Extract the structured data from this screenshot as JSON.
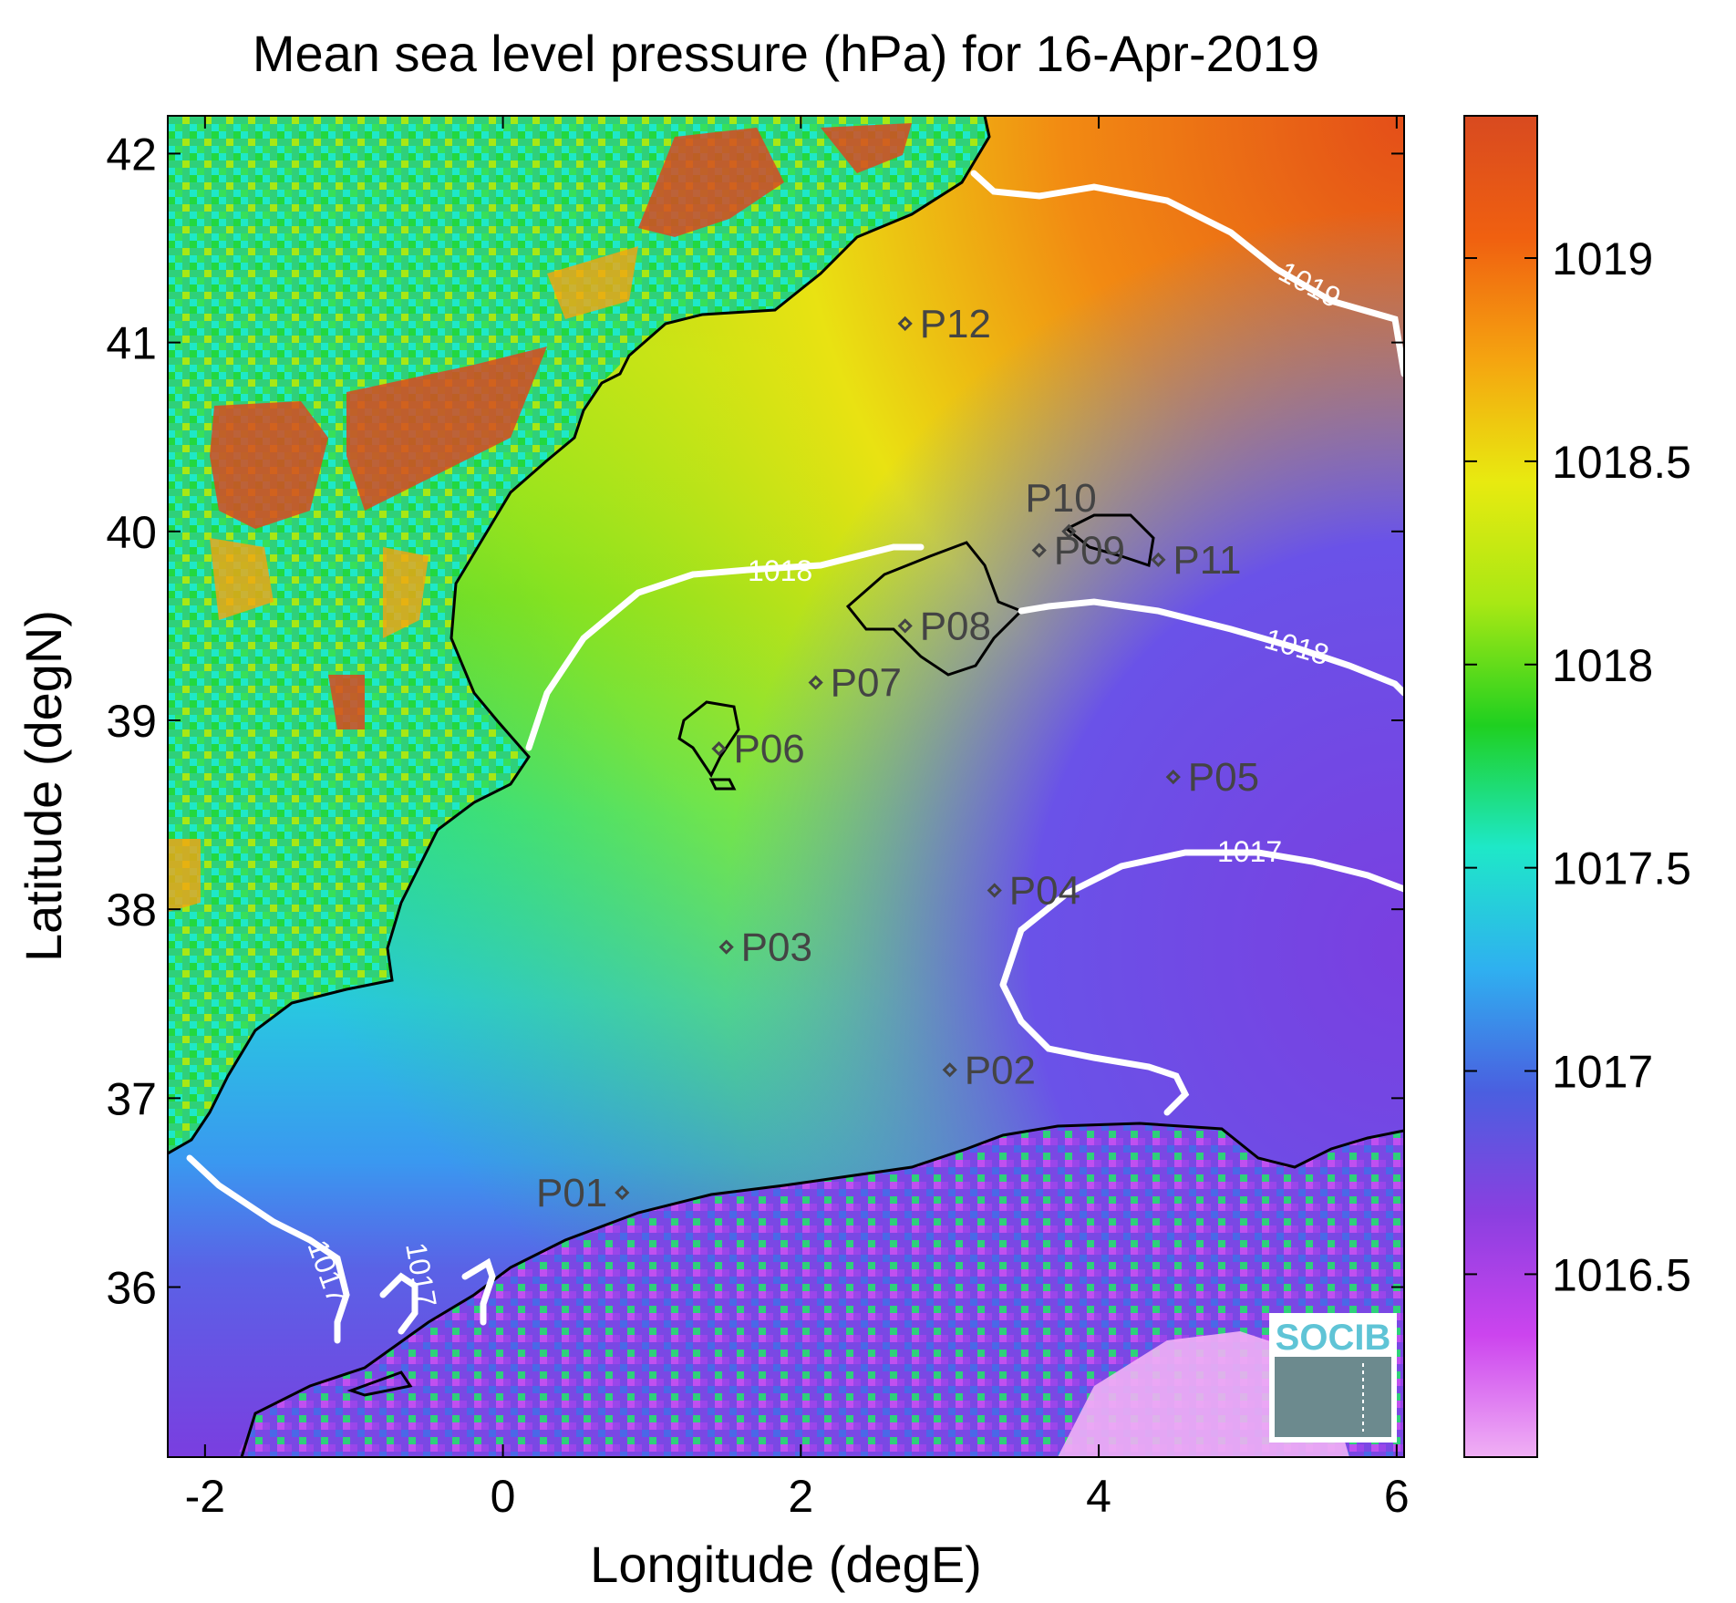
{
  "title": "Mean sea level pressure (hPa) for 16-Apr-2019",
  "xlabel": "Longitude (degE)",
  "ylabel": "Latitude (degN)",
  "x_ticks": [
    "-2",
    "0",
    "2",
    "4",
    "6"
  ],
  "y_ticks": [
    "36",
    "37",
    "38",
    "39",
    "40",
    "41",
    "42"
  ],
  "colorbar": {
    "ticks": [
      "1016.5",
      "1017",
      "1017.5",
      "1018",
      "1018.5",
      "1019"
    ],
    "min": 1016.05,
    "max": 1019.35,
    "colors": [
      "#f0b0f5",
      "#cc44ee",
      "#8a3fe0",
      "#4a5fe0",
      "#2fb0f0",
      "#1ee8c8",
      "#1fd020",
      "#a8e814",
      "#e8ea10",
      "#f5a410",
      "#f06010",
      "#d84a20"
    ]
  },
  "map": {
    "lon_range": [
      -2.25,
      6.05
    ],
    "lat_range": [
      35.1,
      42.2
    ],
    "contour_labels": [
      "1019",
      "1018",
      "1018",
      "1017",
      "1017",
      "1017"
    ]
  },
  "stations": [
    {
      "id": "P01",
      "lon": 0.8,
      "lat": 36.5
    },
    {
      "id": "P02",
      "lon": 3.0,
      "lat": 37.15
    },
    {
      "id": "P03",
      "lon": 1.5,
      "lat": 37.8
    },
    {
      "id": "P04",
      "lon": 3.3,
      "lat": 38.1
    },
    {
      "id": "P05",
      "lon": 4.5,
      "lat": 38.7
    },
    {
      "id": "P06",
      "lon": 1.45,
      "lat": 38.85
    },
    {
      "id": "P07",
      "lon": 2.1,
      "lat": 39.2
    },
    {
      "id": "P08",
      "lon": 2.7,
      "lat": 39.5
    },
    {
      "id": "P09",
      "lon": 3.6,
      "lat": 39.9
    },
    {
      "id": "P10",
      "lon": 3.8,
      "lat": 40.0
    },
    {
      "id": "P11",
      "lon": 4.4,
      "lat": 39.85
    },
    {
      "id": "P12",
      "lon": 2.7,
      "lat": 41.1
    }
  ],
  "logo": {
    "text": "SOCIB"
  }
}
